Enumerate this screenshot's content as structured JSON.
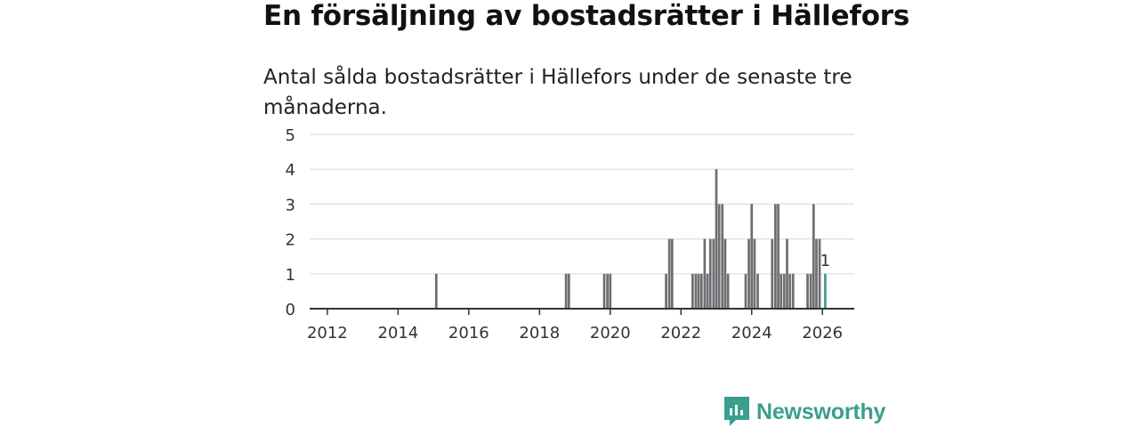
{
  "header": {
    "title": "En försäljning av bostadsrätter i Hällefors",
    "subtitle": "Antal sålda bostadsrätter i Hällefors under de senaste tre månaderna."
  },
  "brand": {
    "name": "Newsworthy",
    "color": "#3a9e8f"
  },
  "colors": {
    "bar": "#6e6e72",
    "highlight": "#3a9e8f",
    "grid": "#dddddd",
    "axis": "#333333"
  },
  "chart_data": {
    "type": "bar",
    "title": "En försäljning av bostadsrätter i Hällefors",
    "xlabel": "",
    "ylabel": "",
    "ylim": [
      0,
      5
    ],
    "xlim": [
      2011.5,
      2026.9
    ],
    "yticks": [
      "0",
      "1",
      "2",
      "3",
      "4",
      "5"
    ],
    "xticks": [
      "2012",
      "2014",
      "2016",
      "2018",
      "2020",
      "2022",
      "2024",
      "2026"
    ],
    "series": [
      {
        "name": "Sålda bostadsrätter",
        "points": [
          {
            "x": 2015.08,
            "y": 1
          },
          {
            "x": 2018.75,
            "y": 1
          },
          {
            "x": 2018.83,
            "y": 1
          },
          {
            "x": 2019.83,
            "y": 1
          },
          {
            "x": 2019.92,
            "y": 1
          },
          {
            "x": 2020.0,
            "y": 1
          },
          {
            "x": 2021.58,
            "y": 1
          },
          {
            "x": 2021.67,
            "y": 2
          },
          {
            "x": 2021.75,
            "y": 2
          },
          {
            "x": 2022.33,
            "y": 1
          },
          {
            "x": 2022.42,
            "y": 1
          },
          {
            "x": 2022.5,
            "y": 1
          },
          {
            "x": 2022.58,
            "y": 1
          },
          {
            "x": 2022.67,
            "y": 2
          },
          {
            "x": 2022.75,
            "y": 1
          },
          {
            "x": 2022.83,
            "y": 2
          },
          {
            "x": 2022.92,
            "y": 2
          },
          {
            "x": 2023.0,
            "y": 4
          },
          {
            "x": 2023.08,
            "y": 3
          },
          {
            "x": 2023.17,
            "y": 3
          },
          {
            "x": 2023.25,
            "y": 2
          },
          {
            "x": 2023.33,
            "y": 1
          },
          {
            "x": 2023.83,
            "y": 1
          },
          {
            "x": 2023.92,
            "y": 2
          },
          {
            "x": 2024.0,
            "y": 3
          },
          {
            "x": 2024.08,
            "y": 2
          },
          {
            "x": 2024.17,
            "y": 1
          },
          {
            "x": 2024.58,
            "y": 2
          },
          {
            "x": 2024.67,
            "y": 3
          },
          {
            "x": 2024.75,
            "y": 3
          },
          {
            "x": 2024.83,
            "y": 1
          },
          {
            "x": 2024.92,
            "y": 1
          },
          {
            "x": 2025.0,
            "y": 2
          },
          {
            "x": 2025.08,
            "y": 1
          },
          {
            "x": 2025.17,
            "y": 1
          },
          {
            "x": 2025.58,
            "y": 1
          },
          {
            "x": 2025.67,
            "y": 1
          },
          {
            "x": 2025.75,
            "y": 3
          },
          {
            "x": 2025.83,
            "y": 2
          },
          {
            "x": 2025.92,
            "y": 2
          },
          {
            "x": 2026.08,
            "y": 1,
            "highlight": true
          }
        ]
      }
    ],
    "annotations": [
      {
        "x": 2026.08,
        "y": 1,
        "text": "1"
      }
    ]
  }
}
